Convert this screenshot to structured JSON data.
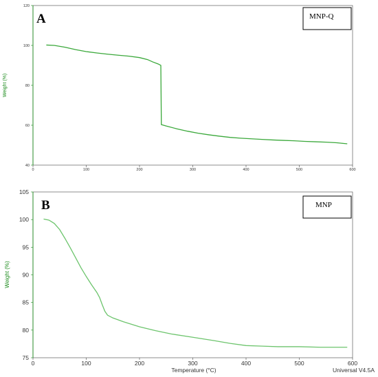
{
  "chart_data": [
    {
      "type": "line",
      "panel": "A",
      "legend": "MNP-Q",
      "ylabel": "Weight (%)",
      "xlim": [
        0,
        600
      ],
      "ylim": [
        40,
        120
      ],
      "xticks": [
        "0",
        "100",
        "200",
        "300",
        "400",
        "500",
        "600"
      ],
      "yticks": [
        "40",
        "60",
        "80",
        "100",
        "120"
      ],
      "colors": {
        "line": "#3aa83a",
        "axis": "#1a8a1a"
      },
      "series": [
        {
          "x": [
            25,
            40,
            60,
            80,
            100,
            120,
            140,
            160,
            180,
            200,
            215,
            225,
            235,
            240,
            240.5,
            241,
            250,
            270,
            290,
            310,
            330,
            350,
            370,
            390,
            410,
            430,
            450,
            470,
            490,
            510,
            530,
            550,
            570,
            590
          ],
          "y": [
            100.2,
            100.0,
            99.1,
            97.9,
            96.9,
            96.2,
            95.6,
            95.1,
            94.6,
            93.9,
            92.9,
            91.7,
            90.7,
            90.0,
            75.0,
            60.3,
            59.6,
            58.2,
            57.0,
            56.0,
            55.2,
            54.5,
            53.9,
            53.5,
            53.2,
            52.9,
            52.6,
            52.4,
            52.2,
            51.9,
            51.7,
            51.5,
            51.2,
            50.7
          ]
        }
      ]
    },
    {
      "type": "line",
      "panel": "B",
      "legend": "MNP",
      "ylabel": "Weight (%)",
      "xlabel": "Temperature (°C)",
      "xlim": [
        0,
        600
      ],
      "ylim": [
        75,
        105
      ],
      "xticks": [
        "0",
        "100",
        "200",
        "300",
        "400",
        "500",
        "600"
      ],
      "yticks": [
        "75",
        "80",
        "85",
        "90",
        "95",
        "100",
        "105"
      ],
      "colors": {
        "line": "#6cc46c",
        "axis": "#1a8a1a"
      },
      "series": [
        {
          "x": [
            20,
            30,
            40,
            50,
            60,
            70,
            80,
            90,
            100,
            110,
            120,
            125,
            130,
            135,
            140,
            150,
            170,
            200,
            230,
            260,
            300,
            340,
            370,
            400,
            430,
            460,
            500,
            540,
            590
          ],
          "y": [
            100.1,
            99.9,
            99.3,
            98.2,
            96.6,
            94.9,
            93.1,
            91.3,
            89.7,
            88.2,
            86.8,
            85.9,
            84.6,
            83.4,
            82.7,
            82.2,
            81.5,
            80.6,
            79.9,
            79.3,
            78.7,
            78.1,
            77.6,
            77.2,
            77.1,
            77.0,
            77.0,
            76.9,
            76.9
          ]
        }
      ]
    }
  ],
  "footer": "Universal V4.5A"
}
